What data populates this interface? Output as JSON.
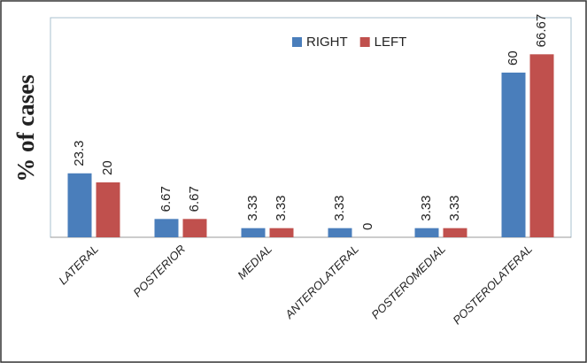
{
  "chart_data": {
    "type": "bar",
    "y_label": "% of cases",
    "categories": [
      "LATERAL",
      "POSTERIOR",
      "MEDIAL",
      "ANTEROLATERAL",
      "POSTEROMEDIAL",
      "POSTEROLATERAL"
    ],
    "series": [
      {
        "name": "RIGHT",
        "color": "#4a7ebb",
        "values": [
          23.3,
          6.67,
          3.33,
          3.33,
          3.33,
          60
        ]
      },
      {
        "name": "LEFT",
        "color": "#c0504d",
        "values": [
          20,
          6.67,
          3.33,
          0,
          3.33,
          66.67
        ]
      }
    ],
    "ylim": [
      0,
      80
    ],
    "legend": "top"
  }
}
